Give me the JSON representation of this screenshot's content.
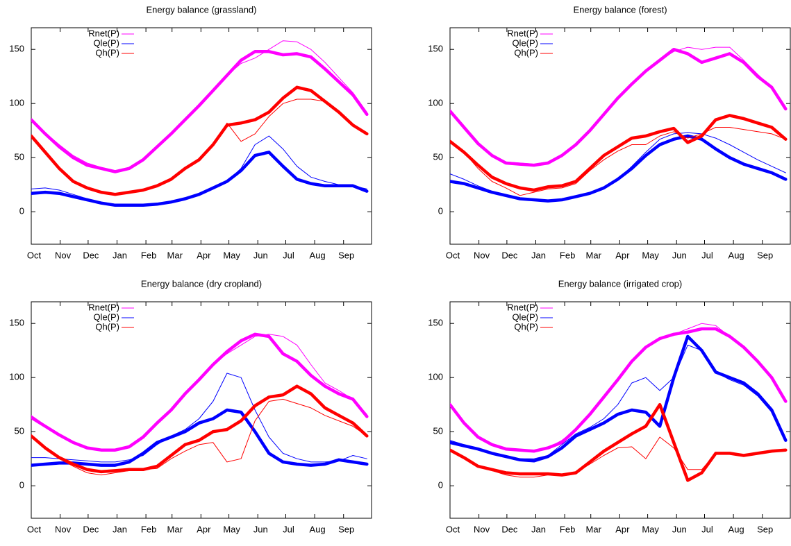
{
  "chart_data": [
    {
      "type": "line",
      "title": "Energy balance (grassland)",
      "x": [
        0,
        15,
        30,
        45,
        60,
        75,
        90,
        105,
        120,
        135,
        150,
        165,
        180,
        195,
        210,
        225,
        240,
        255,
        270,
        285,
        300,
        315,
        330,
        345,
        360
      ],
      "xlim": [
        0,
        365
      ],
      "xticks": [
        {
          "value": 0,
          "label": "Oct"
        },
        {
          "value": 31,
          "label": "Nov"
        },
        {
          "value": 61,
          "label": "Dec"
        },
        {
          "value": 92,
          "label": "Jan"
        },
        {
          "value": 123,
          "label": "Feb"
        },
        {
          "value": 151,
          "label": "Mar"
        },
        {
          "value": 182,
          "label": "Apr"
        },
        {
          "value": 212,
          "label": "May"
        },
        {
          "value": 243,
          "label": "Jun"
        },
        {
          "value": 273,
          "label": "Jul"
        },
        {
          "value": 304,
          "label": "Aug"
        },
        {
          "value": 335,
          "label": "Sep"
        }
      ],
      "ylim": [
        -30,
        170
      ],
      "yticks": [
        0,
        50,
        100,
        150
      ],
      "series": [
        {
          "name": "Rnet(P)",
          "color": "#ff00ff",
          "values": [
            85,
            72,
            60,
            50,
            43,
            40,
            37,
            40,
            48,
            60,
            72,
            85,
            98,
            112,
            126,
            140,
            148,
            148,
            145,
            146,
            143,
            132,
            120,
            108,
            90
          ],
          "thin_values": [
            85,
            73,
            62,
            52,
            45,
            41,
            38,
            41,
            48,
            60,
            72,
            85,
            98,
            112,
            126,
            137,
            142,
            150,
            158,
            157,
            150,
            138,
            124,
            110,
            92
          ]
        },
        {
          "name": "Qle(P)",
          "color": "#0000ff",
          "values": [
            17,
            18,
            17,
            14,
            11,
            8,
            6,
            6,
            6,
            7,
            9,
            12,
            16,
            22,
            28,
            38,
            52,
            55,
            42,
            30,
            26,
            24,
            24,
            24,
            19
          ],
          "thin_values": [
            21,
            22,
            20,
            16,
            12,
            9,
            7,
            6,
            6,
            7,
            9,
            12,
            16,
            21,
            28,
            40,
            62,
            70,
            58,
            42,
            32,
            28,
            25,
            24,
            21
          ]
        },
        {
          "name": "Qh(P)",
          "color": "#ff0000",
          "values": [
            70,
            55,
            40,
            28,
            22,
            18,
            16,
            18,
            20,
            24,
            30,
            40,
            48,
            62,
            80,
            82,
            85,
            92,
            105,
            115,
            112,
            102,
            92,
            80,
            72
          ],
          "thin_values": [
            70,
            55,
            40,
            28,
            22,
            18,
            16,
            18,
            20,
            24,
            30,
            40,
            48,
            62,
            82,
            65,
            72,
            88,
            100,
            104,
            104,
            102,
            92,
            80,
            72
          ]
        }
      ]
    },
    {
      "type": "line",
      "title": "Energy balance (forest)",
      "x": [
        0,
        15,
        30,
        45,
        60,
        75,
        90,
        105,
        120,
        135,
        150,
        165,
        180,
        195,
        210,
        225,
        240,
        255,
        270,
        285,
        300,
        315,
        330,
        345,
        360
      ],
      "xlim": [
        0,
        365
      ],
      "xticks": [
        {
          "value": 0,
          "label": "Oct"
        },
        {
          "value": 31,
          "label": "Nov"
        },
        {
          "value": 61,
          "label": "Dec"
        },
        {
          "value": 92,
          "label": "Jan"
        },
        {
          "value": 123,
          "label": "Feb"
        },
        {
          "value": 151,
          "label": "Mar"
        },
        {
          "value": 182,
          "label": "Apr"
        },
        {
          "value": 212,
          "label": "May"
        },
        {
          "value": 243,
          "label": "Jun"
        },
        {
          "value": 273,
          "label": "Jul"
        },
        {
          "value": 304,
          "label": "Aug"
        },
        {
          "value": 335,
          "label": "Sep"
        }
      ],
      "ylim": [
        -30,
        170
      ],
      "yticks": [
        0,
        50,
        100,
        150
      ],
      "series": [
        {
          "name": "Rnet(P)",
          "color": "#ff00ff",
          "values": [
            93,
            78,
            63,
            52,
            45,
            44,
            43,
            45,
            52,
            62,
            75,
            90,
            105,
            118,
            130,
            140,
            150,
            146,
            138,
            142,
            146,
            138,
            125,
            115,
            95
          ],
          "thin_values": [
            92,
            77,
            62,
            52,
            46,
            45,
            44,
            46,
            52,
            62,
            75,
            90,
            105,
            118,
            130,
            140,
            148,
            152,
            150,
            152,
            152,
            140,
            127,
            115,
            95
          ]
        },
        {
          "name": "Qle(P)",
          "color": "#0000ff",
          "values": [
            28,
            26,
            22,
            18,
            15,
            12,
            11,
            10,
            11,
            14,
            17,
            22,
            30,
            40,
            52,
            62,
            67,
            70,
            67,
            58,
            50,
            44,
            40,
            36,
            30
          ],
          "thin_values": [
            35,
            30,
            24,
            19,
            15,
            12,
            11,
            11,
            11,
            14,
            17,
            22,
            30,
            42,
            55,
            67,
            72,
            73,
            72,
            68,
            62,
            55,
            48,
            42,
            36
          ]
        },
        {
          "name": "Qh(P)",
          "color": "#ff0000",
          "values": [
            65,
            55,
            43,
            32,
            26,
            22,
            20,
            23,
            24,
            28,
            40,
            52,
            60,
            68,
            70,
            74,
            77,
            64,
            70,
            85,
            89,
            86,
            82,
            78,
            67
          ],
          "thin_values": [
            65,
            55,
            40,
            28,
            22,
            15,
            18,
            21,
            22,
            26,
            38,
            48,
            56,
            62,
            62,
            70,
            74,
            68,
            72,
            78,
            78,
            76,
            74,
            72,
            67
          ]
        }
      ]
    },
    {
      "type": "line",
      "title": "Energy balance (dry cropland)",
      "x": [
        0,
        15,
        30,
        45,
        60,
        75,
        90,
        105,
        120,
        135,
        150,
        165,
        180,
        195,
        210,
        225,
        240,
        255,
        270,
        285,
        300,
        315,
        330,
        345,
        360
      ],
      "xlim": [
        0,
        365
      ],
      "xticks": [
        {
          "value": 0,
          "label": "Oct"
        },
        {
          "value": 31,
          "label": "Nov"
        },
        {
          "value": 61,
          "label": "Dec"
        },
        {
          "value": 92,
          "label": "Jan"
        },
        {
          "value": 123,
          "label": "Feb"
        },
        {
          "value": 151,
          "label": "Mar"
        },
        {
          "value": 182,
          "label": "Apr"
        },
        {
          "value": 212,
          "label": "May"
        },
        {
          "value": 243,
          "label": "Jun"
        },
        {
          "value": 273,
          "label": "Jul"
        },
        {
          "value": 304,
          "label": "Aug"
        },
        {
          "value": 335,
          "label": "Sep"
        }
      ],
      "ylim": [
        -30,
        170
      ],
      "yticks": [
        0,
        50,
        100,
        150
      ],
      "series": [
        {
          "name": "Rnet(P)",
          "color": "#ff00ff",
          "values": [
            63,
            55,
            47,
            40,
            35,
            33,
            33,
            36,
            45,
            58,
            70,
            85,
            98,
            112,
            124,
            134,
            140,
            138,
            122,
            115,
            102,
            92,
            85,
            80,
            64
          ],
          "thin_values": [
            65,
            56,
            47,
            40,
            35,
            33,
            33,
            36,
            45,
            58,
            70,
            85,
            98,
            112,
            122,
            130,
            138,
            140,
            138,
            130,
            112,
            95,
            88,
            80,
            66
          ]
        },
        {
          "name": "Qle(P)",
          "color": "#0000ff",
          "values": [
            19,
            20,
            21,
            21,
            20,
            19,
            19,
            22,
            30,
            40,
            45,
            50,
            58,
            62,
            70,
            68,
            50,
            30,
            22,
            20,
            19,
            20,
            24,
            22,
            20
          ],
          "thin_values": [
            26,
            26,
            25,
            24,
            23,
            22,
            22,
            24,
            28,
            38,
            46,
            52,
            62,
            78,
            104,
            100,
            70,
            45,
            30,
            25,
            22,
            22,
            23,
            28,
            25
          ]
        },
        {
          "name": "Qh(P)",
          "color": "#ff0000",
          "values": [
            46,
            35,
            26,
            20,
            15,
            13,
            14,
            15,
            15,
            18,
            28,
            38,
            42,
            50,
            52,
            60,
            74,
            82,
            84,
            92,
            85,
            72,
            65,
            58,
            46
          ],
          "thin_values": [
            46,
            35,
            25,
            18,
            12,
            10,
            12,
            14,
            15,
            16,
            25,
            32,
            38,
            40,
            22,
            25,
            60,
            78,
            80,
            76,
            72,
            65,
            60,
            55,
            46
          ]
        }
      ]
    },
    {
      "type": "line",
      "title": "Energy balance (irrigated crop)",
      "x": [
        0,
        15,
        30,
        45,
        60,
        75,
        90,
        105,
        120,
        135,
        150,
        165,
        180,
        195,
        210,
        225,
        240,
        255,
        270,
        285,
        300,
        315,
        330,
        345,
        360
      ],
      "xlim": [
        0,
        365
      ],
      "xticks": [
        {
          "value": 0,
          "label": "Oct"
        },
        {
          "value": 31,
          "label": "Nov"
        },
        {
          "value": 61,
          "label": "Dec"
        },
        {
          "value": 92,
          "label": "Jan"
        },
        {
          "value": 123,
          "label": "Feb"
        },
        {
          "value": 151,
          "label": "Mar"
        },
        {
          "value": 182,
          "label": "Apr"
        },
        {
          "value": 212,
          "label": "May"
        },
        {
          "value": 243,
          "label": "Jun"
        },
        {
          "value": 273,
          "label": "Jul"
        },
        {
          "value": 304,
          "label": "Aug"
        },
        {
          "value": 335,
          "label": "Sep"
        }
      ],
      "ylim": [
        -30,
        170
      ],
      "yticks": [
        0,
        50,
        100,
        150
      ],
      "series": [
        {
          "name": "Rnet(P)",
          "color": "#ff00ff",
          "values": [
            75,
            58,
            45,
            38,
            34,
            33,
            32,
            35,
            40,
            52,
            66,
            82,
            98,
            115,
            128,
            136,
            140,
            142,
            145,
            145,
            138,
            128,
            115,
            100,
            78
          ],
          "thin_values": [
            75,
            58,
            45,
            38,
            34,
            33,
            32,
            35,
            42,
            52,
            66,
            82,
            98,
            115,
            128,
            136,
            140,
            145,
            150,
            148,
            138,
            128,
            115,
            100,
            78
          ]
        },
        {
          "name": "Qle(P)",
          "color": "#0000ff",
          "values": [
            40,
            37,
            34,
            30,
            27,
            24,
            23,
            27,
            35,
            46,
            52,
            58,
            66,
            70,
            68,
            55,
            100,
            138,
            125,
            105,
            100,
            95,
            85,
            70,
            42
          ],
          "thin_values": [
            42,
            38,
            34,
            30,
            27,
            25,
            25,
            28,
            38,
            48,
            54,
            62,
            75,
            95,
            100,
            88,
            100,
            130,
            125,
            105,
            98,
            93,
            83,
            68,
            42
          ]
        },
        {
          "name": "Qh(P)",
          "color": "#ff0000",
          "values": [
            33,
            26,
            18,
            15,
            12,
            11,
            11,
            11,
            10,
            12,
            22,
            32,
            40,
            48,
            55,
            75,
            40,
            5,
            12,
            30,
            30,
            28,
            30,
            32,
            33
          ],
          "thin_values": [
            33,
            26,
            18,
            14,
            10,
            8,
            8,
            10,
            10,
            12,
            20,
            28,
            35,
            36,
            25,
            45,
            35,
            15,
            15,
            30,
            30,
            28,
            30,
            32,
            33
          ]
        }
      ]
    }
  ]
}
